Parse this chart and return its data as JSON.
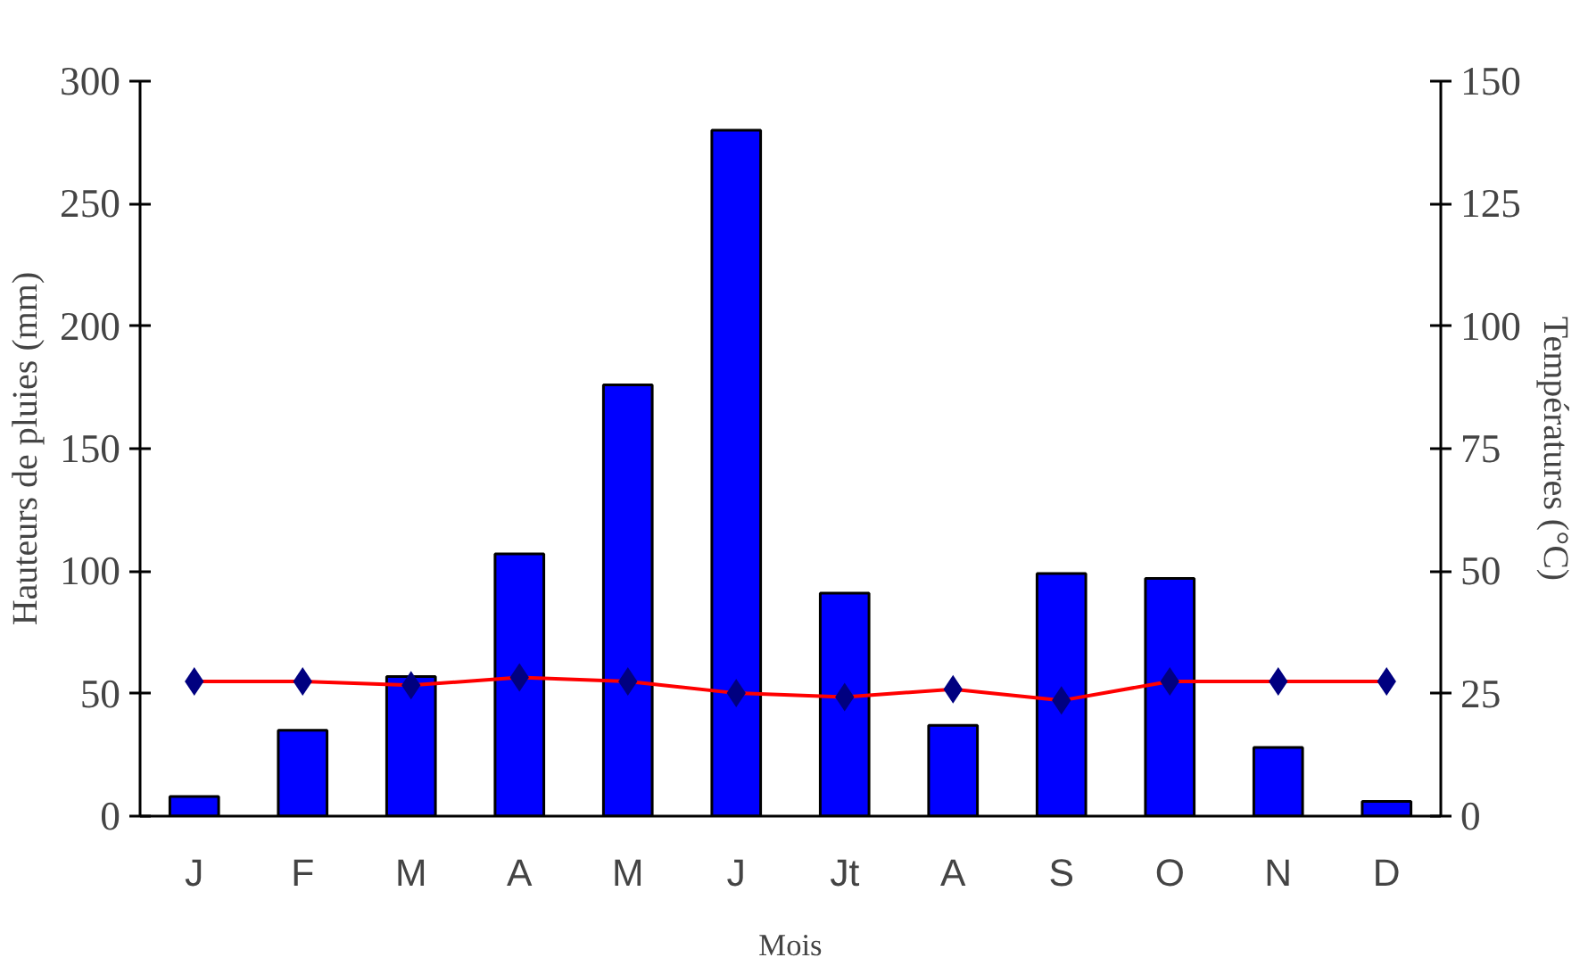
{
  "chart_data": {
    "type": "bar",
    "xlabel": "Mois",
    "ylabel": "Hauteurs de pluies (mm)",
    "y2label": "Températures (°C)",
    "categories": [
      "J",
      "F",
      "M",
      "A",
      "M",
      "J",
      "Jt",
      "A",
      "S",
      "O",
      "N",
      "D"
    ],
    "series": [
      {
        "color": "#0000ff",
        "values": [
          8,
          35,
          57,
          107,
          176,
          280,
          91,
          37,
          99,
          97,
          28,
          6
        ]
      },
      {
        "type": "line",
        "axis": "y2",
        "color": "#ff0000",
        "colors": [
          "#000080",
          "#000080",
          "#000080",
          "#000080",
          "#000080",
          "#000080",
          "#000080",
          "#000080",
          "#000080",
          "#000080",
          "#000080",
          "#000080"
        ],
        "marker": "diamond",
        "values": [
          27.5,
          27.5,
          26.7,
          28.3,
          27.5,
          25.1,
          24.3,
          25.9,
          23.6,
          27.5,
          27.5,
          27.5
        ]
      }
    ],
    "ylim": [
      0,
      300
    ],
    "yticks": [
      0,
      50,
      100,
      150,
      200,
      250,
      300
    ],
    "y2lim": [
      0,
      150
    ],
    "y2ticks": [
      0,
      25,
      50,
      75,
      100,
      125,
      150
    ],
    "grid": false
  }
}
